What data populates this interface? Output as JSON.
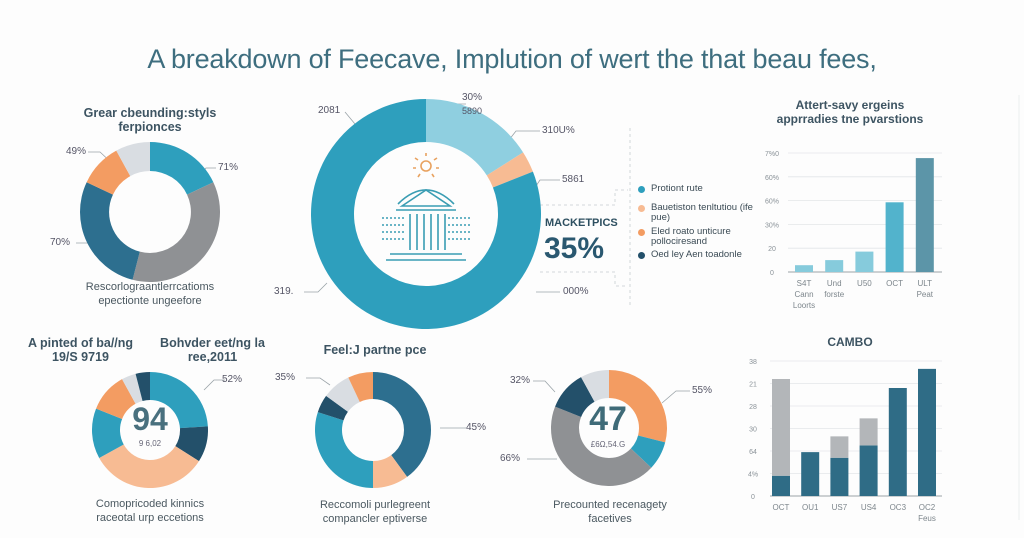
{
  "title": "A breakdown of Feecave, Implution of wert the that beau fees,",
  "colors": {
    "teal": "#2e9fbd",
    "light_blue": "#8fcfe0",
    "orange": "#f39c62",
    "peach": "#f7bb93",
    "navy": "#23506a",
    "dark_blue": "#2d6f8f",
    "gray": "#8f9194",
    "light_gray": "#d9dde2",
    "title": "#3e6e7f"
  },
  "chart_data": [
    {
      "type": "pie",
      "title": [
        "Grear cbeunding:styls",
        "ferpionces"
      ],
      "caption": [
        "Rescorlograantlerrcatioms",
        "epectionte ungeefore"
      ],
      "labels": [
        "49%",
        "71%",
        "70%"
      ],
      "slices": [
        {
          "color": "teal",
          "value": 18
        },
        {
          "color": "gray",
          "value": 36
        },
        {
          "color": "dark_blue",
          "value": 28
        },
        {
          "color": "orange",
          "value": 10
        },
        {
          "color": "light_gray",
          "value": 8
        }
      ]
    },
    {
      "type": "pie",
      "labels": [
        "2081",
        "30%",
        "5890",
        "310U%",
        "5861",
        "319.",
        "000%"
      ],
      "icon": "government-building-icon",
      "callout": {
        "title": "MACKETPICS",
        "value": "35%"
      },
      "legend": [
        {
          "color": "teal",
          "label": "Protiont rute"
        },
        {
          "color": "peach",
          "label": "Bauetiston tenltutiou (ife pue)"
        },
        {
          "color": "orange",
          "label": "Eled roato unticure pollociresand"
        },
        {
          "color": "navy",
          "label": "Oed ley Aen toadonle"
        }
      ],
      "slices": [
        {
          "color": "light_blue",
          "value": 16
        },
        {
          "color": "peach",
          "value": 3
        },
        {
          "color": "teal",
          "value": 81
        }
      ]
    },
    {
      "type": "bar",
      "title": [
        "Attert-savy ergeins",
        "apprradies tne pvarstions"
      ],
      "yticks": [
        "0",
        "20",
        "30%",
        "60%",
        "60%",
        "7%0"
      ],
      "ylim": [
        0,
        70
      ],
      "categories": [
        [
          "S4T",
          "Cann",
          "Loorts"
        ],
        [
          "Und",
          "forste"
        ],
        [
          "U50"
        ],
        [
          "OCT"
        ],
        [
          "ULT",
          "Peat"
        ]
      ],
      "values": [
        4,
        7,
        12,
        41,
        67
      ],
      "bar_colors": [
        "#86cbdc",
        "#86cbdc",
        "#86cbdc",
        "#52b3cc",
        "#5c95a8"
      ]
    },
    {
      "type": "pie",
      "title": [
        [
          "A pinted of ba//ng",
          "19/S 9719"
        ],
        [
          "Bohvder eet/ng la",
          "ree,2011"
        ]
      ],
      "center": {
        "value": "94",
        "sub": "9 6,02"
      },
      "labels": [
        "52%"
      ],
      "caption": [
        "Comopricoded kinnics",
        "raceotal urp eccetions"
      ],
      "slices": [
        {
          "color": "teal",
          "value": 24
        },
        {
          "color": "navy",
          "value": 10
        },
        {
          "color": "peach",
          "value": 33
        },
        {
          "color": "teal",
          "value": 14
        },
        {
          "color": "orange",
          "value": 11
        },
        {
          "color": "light_gray",
          "value": 4
        },
        {
          "color": "navy",
          "value": 4
        }
      ]
    },
    {
      "type": "pie",
      "title": "Feel:J partne pce",
      "labels": [
        "35%",
        "45%"
      ],
      "caption": [
        "Reccomoli purlegreent",
        "compancler eptiverse"
      ],
      "slices": [
        {
          "color": "dark_blue",
          "value": 40
        },
        {
          "color": "peach",
          "value": 10
        },
        {
          "color": "teal",
          "value": 30
        },
        {
          "color": "navy",
          "value": 5
        },
        {
          "color": "light_gray",
          "value": 8
        },
        {
          "color": "orange",
          "value": 7
        }
      ]
    },
    {
      "type": "pie",
      "center": {
        "value": "47",
        "sub": "£6Ω,54.G"
      },
      "labels": [
        "32%",
        "55%",
        "66%"
      ],
      "caption": [
        "Precounted recenagety",
        "facetives"
      ],
      "slices": [
        {
          "color": "orange",
          "value": 29
        },
        {
          "color": "teal",
          "value": 8
        },
        {
          "color": "gray",
          "value": 44
        },
        {
          "color": "navy",
          "value": 11
        },
        {
          "color": "light_gray",
          "value": 8
        }
      ]
    },
    {
      "type": "bar",
      "stacked": true,
      "title": "CAMBO",
      "yticks": [
        "0",
        "4%",
        "64",
        "30",
        "28",
        "21",
        "38"
      ],
      "ylim": [
        0,
        6
      ],
      "categories": [
        [
          "OCT"
        ],
        [
          "OU1"
        ],
        [
          "US7"
        ],
        [
          "US4"
        ],
        [
          "OC3"
        ],
        [
          "OC2",
          "Feus"
        ]
      ],
      "series": [
        {
          "color": "#2f6c86",
          "values": [
            0.9,
            1.95,
            1.7,
            2.25,
            4.8,
            5.65
          ]
        },
        {
          "color": "#b3b6b9",
          "values": [
            4.3,
            0,
            0.95,
            1.2,
            0,
            0
          ]
        }
      ]
    }
  ]
}
